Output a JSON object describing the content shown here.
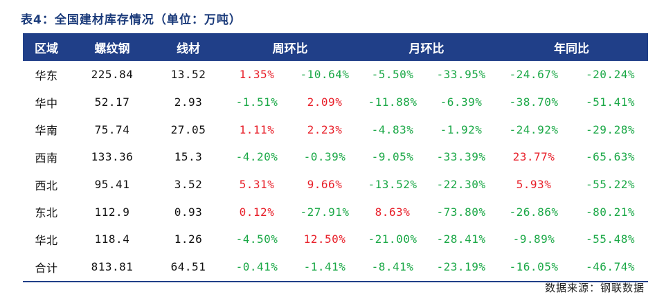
{
  "caption": "表4：全国建材库存情况（单位：万吨）",
  "headers": [
    "区域",
    "螺纹钢",
    "线材",
    "周环比",
    "月环比",
    "年同比"
  ],
  "rows": [
    {
      "region": "华东",
      "rebar": "225.84",
      "wire": "13.52",
      "wow": [
        "1.35%",
        "-10.64%"
      ],
      "mom": [
        "-5.50%",
        "-33.95%"
      ],
      "yoy": [
        "-24.67%",
        "-20.24%"
      ]
    },
    {
      "region": "华中",
      "rebar": "52.17",
      "wire": "2.93",
      "wow": [
        "-1.51%",
        "2.09%"
      ],
      "mom": [
        "-11.88%",
        "-6.39%"
      ],
      "yoy": [
        "-38.70%",
        "-51.41%"
      ]
    },
    {
      "region": "华南",
      "rebar": "75.74",
      "wire": "27.05",
      "wow": [
        "1.11%",
        "2.23%"
      ],
      "mom": [
        "-4.83%",
        "-1.92%"
      ],
      "yoy": [
        "-24.92%",
        "-29.28%"
      ]
    },
    {
      "region": "西南",
      "rebar": "133.36",
      "wire": "15.3",
      "wow": [
        "-4.20%",
        "-0.39%"
      ],
      "mom": [
        "-9.05%",
        "-33.39%"
      ],
      "yoy": [
        "23.77%",
        "-65.63%"
      ]
    },
    {
      "region": "西北",
      "rebar": "95.41",
      "wire": "3.52",
      "wow": [
        "5.31%",
        "9.66%"
      ],
      "mom": [
        "-13.52%",
        "-22.30%"
      ],
      "yoy": [
        "5.93%",
        "-55.22%"
      ]
    },
    {
      "region": "东北",
      "rebar": "112.9",
      "wire": "0.93",
      "wow": [
        "0.12%",
        "-27.91%"
      ],
      "mom": [
        "8.63%",
        "-73.80%"
      ],
      "yoy": [
        "-26.86%",
        "-80.21%"
      ]
    },
    {
      "region": "华北",
      "rebar": "118.4",
      "wire": "1.26",
      "wow": [
        "-4.50%",
        "12.50%"
      ],
      "mom": [
        "-21.00%",
        "-28.41%"
      ],
      "yoy": [
        "-9.89%",
        "-55.48%"
      ]
    },
    {
      "region": "合计",
      "rebar": "813.81",
      "wire": "64.51",
      "wow": [
        "-0.41%",
        "-1.41%"
      ],
      "mom": [
        "-8.41%",
        "-23.19%"
      ],
      "yoy": [
        "-16.05%",
        "-46.74%"
      ]
    }
  ],
  "source": "数据来源：钢联数据",
  "colors": {
    "header_bg": "#203f88",
    "positive": "#e8202a",
    "negative": "#1aa846"
  }
}
